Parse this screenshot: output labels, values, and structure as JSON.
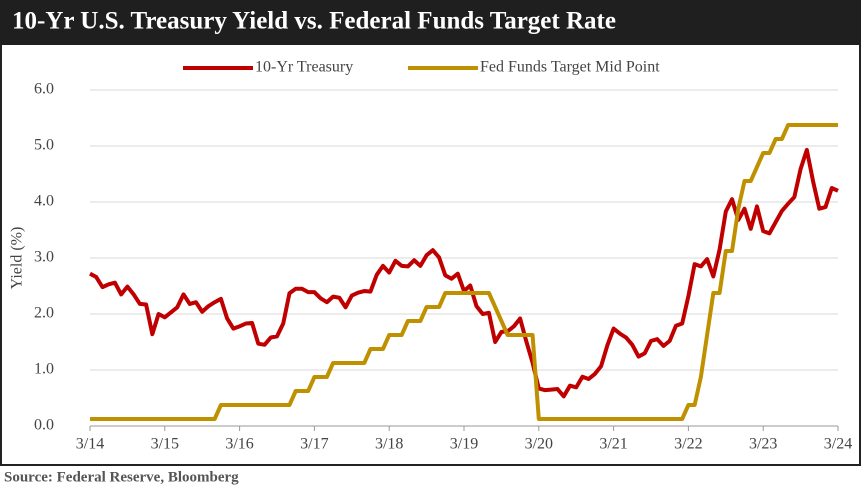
{
  "chart_data": {
    "type": "line",
    "title": "10-Yr U.S. Treasury Yield vs. Federal Funds Target Rate",
    "y_label": "Yield (%)",
    "source": "Source:   Federal Reserve,  Bloomberg",
    "x": [
      "3/14",
      "4/14",
      "5/14",
      "6/14",
      "7/14",
      "8/14",
      "9/14",
      "10/14",
      "11/14",
      "12/14",
      "1/15",
      "2/15",
      "3/15",
      "4/15",
      "5/15",
      "6/15",
      "7/15",
      "8/15",
      "9/15",
      "10/15",
      "11/15",
      "12/15",
      "1/16",
      "2/16",
      "3/16",
      "4/16",
      "5/16",
      "6/16",
      "7/16",
      "8/16",
      "9/16",
      "10/16",
      "11/16",
      "12/16",
      "1/17",
      "2/17",
      "3/17",
      "4/17",
      "5/17",
      "6/17",
      "7/17",
      "8/17",
      "9/17",
      "10/17",
      "11/17",
      "12/17",
      "1/18",
      "2/18",
      "3/18",
      "4/18",
      "5/18",
      "6/18",
      "7/18",
      "8/18",
      "9/18",
      "10/18",
      "11/18",
      "12/18",
      "1/19",
      "2/19",
      "3/19",
      "4/19",
      "5/19",
      "6/19",
      "7/19",
      "8/19",
      "9/19",
      "10/19",
      "11/19",
      "12/19",
      "1/20",
      "2/20",
      "3/20",
      "4/20",
      "5/20",
      "6/20",
      "7/20",
      "8/20",
      "9/20",
      "10/20",
      "11/20",
      "12/20",
      "1/21",
      "2/21",
      "3/21",
      "4/21",
      "5/21",
      "6/21",
      "7/21",
      "8/21",
      "9/21",
      "10/21",
      "11/21",
      "12/21",
      "1/22",
      "2/22",
      "3/22",
      "4/22",
      "5/22",
      "6/22",
      "7/22",
      "8/22",
      "9/22",
      "10/22",
      "11/22",
      "12/22",
      "1/23",
      "2/23",
      "3/23",
      "4/23",
      "5/23",
      "6/23",
      "7/23",
      "8/23",
      "9/23",
      "10/23",
      "11/23",
      "12/23",
      "1/24",
      "2/24",
      "3/24"
    ],
    "series": [
      {
        "name": "10-Yr Treasury",
        "color": "#c00000",
        "values": [
          2.72,
          2.66,
          2.48,
          2.53,
          2.56,
          2.35,
          2.49,
          2.35,
          2.18,
          2.17,
          1.64,
          2.0,
          1.94,
          2.03,
          2.12,
          2.35,
          2.18,
          2.21,
          2.04,
          2.14,
          2.21,
          2.27,
          1.92,
          1.74,
          1.78,
          1.83,
          1.84,
          1.47,
          1.45,
          1.58,
          1.6,
          1.83,
          2.37,
          2.45,
          2.45,
          2.39,
          2.39,
          2.28,
          2.21,
          2.31,
          2.29,
          2.12,
          2.33,
          2.38,
          2.41,
          2.4,
          2.7,
          2.86,
          2.74,
          2.95,
          2.86,
          2.85,
          2.96,
          2.86,
          3.05,
          3.14,
          3.01,
          2.69,
          2.63,
          2.72,
          2.41,
          2.51,
          2.14,
          2.0,
          2.02,
          1.5,
          1.68,
          1.69,
          1.78,
          1.92,
          1.51,
          1.13,
          0.67,
          0.64,
          0.65,
          0.66,
          0.53,
          0.72,
          0.69,
          0.88,
          0.84,
          0.93,
          1.07,
          1.44,
          1.74,
          1.65,
          1.58,
          1.45,
          1.24,
          1.3,
          1.52,
          1.55,
          1.43,
          1.52,
          1.79,
          1.83,
          2.32,
          2.89,
          2.85,
          2.98,
          2.67,
          3.15,
          3.83,
          4.05,
          3.68,
          3.88,
          3.52,
          3.92,
          3.48,
          3.44,
          3.64,
          3.84,
          3.97,
          4.09,
          4.59,
          4.93,
          4.37,
          3.88,
          3.91,
          4.25,
          4.2
        ]
      },
      {
        "name": "Fed Funds Target Mid Point",
        "color": "#bf9000",
        "values": [
          0.125,
          0.125,
          0.125,
          0.125,
          0.125,
          0.125,
          0.125,
          0.125,
          0.125,
          0.125,
          0.125,
          0.125,
          0.125,
          0.125,
          0.125,
          0.125,
          0.125,
          0.125,
          0.125,
          0.125,
          0.125,
          0.375,
          0.375,
          0.375,
          0.375,
          0.375,
          0.375,
          0.375,
          0.375,
          0.375,
          0.375,
          0.375,
          0.375,
          0.625,
          0.625,
          0.625,
          0.875,
          0.875,
          0.875,
          1.125,
          1.125,
          1.125,
          1.125,
          1.125,
          1.125,
          1.375,
          1.375,
          1.375,
          1.625,
          1.625,
          1.625,
          1.875,
          1.875,
          1.875,
          2.125,
          2.125,
          2.125,
          2.375,
          2.375,
          2.375,
          2.375,
          2.375,
          2.375,
          2.375,
          2.375,
          2.125,
          1.875,
          1.625,
          1.625,
          1.625,
          1.625,
          1.625,
          0.125,
          0.125,
          0.125,
          0.125,
          0.125,
          0.125,
          0.125,
          0.125,
          0.125,
          0.125,
          0.125,
          0.125,
          0.125,
          0.125,
          0.125,
          0.125,
          0.125,
          0.125,
          0.125,
          0.125,
          0.125,
          0.125,
          0.125,
          0.125,
          0.375,
          0.375,
          0.875,
          1.625,
          2.375,
          2.375,
          3.125,
          3.125,
          3.875,
          4.375,
          4.375,
          4.625,
          4.875,
          4.875,
          5.125,
          5.125,
          5.375,
          5.375,
          5.375,
          5.375,
          5.375,
          5.375,
          5.375,
          5.375,
          5.375
        ]
      }
    ],
    "xticks": [
      "3/14",
      "3/15",
      "3/16",
      "3/17",
      "3/18",
      "3/19",
      "3/20",
      "3/21",
      "3/22",
      "3/23",
      "3/24"
    ],
    "ylim": [
      0,
      6
    ],
    "yticks": [
      {
        "value": 0,
        "label": "0.0"
      },
      {
        "value": 1,
        "label": "1.0"
      },
      {
        "value": 2,
        "label": "2.0"
      },
      {
        "value": 3,
        "label": "3.0"
      },
      {
        "value": 4,
        "label": "4.0"
      },
      {
        "value": 5,
        "label": "5.0"
      },
      {
        "value": 6,
        "label": "6.0"
      }
    ],
    "grid": true,
    "legend": "top"
  }
}
